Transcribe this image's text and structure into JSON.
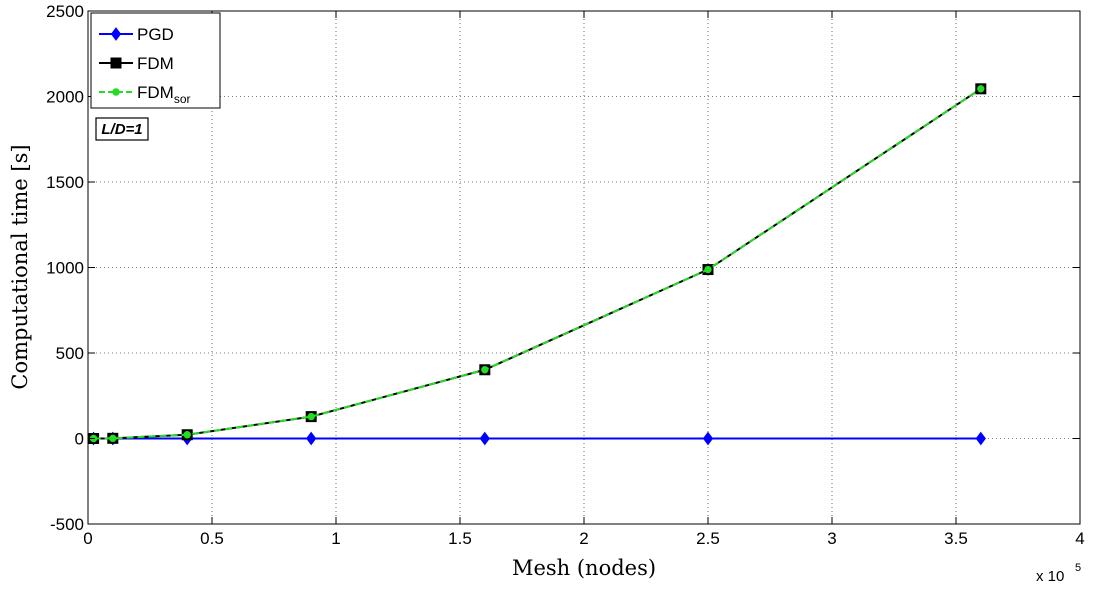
{
  "chart_data": {
    "type": "line",
    "xlabel": "Mesh (nodes)",
    "ylabel": "Computational time [s]",
    "x_multiplier": {
      "base": "x 10",
      "exponent": "5"
    },
    "xlim": [
      0,
      4
    ],
    "ylim": [
      -500,
      2500
    ],
    "x_ticks": [
      "0",
      "0.5",
      "1",
      "1.5",
      "2",
      "2.5",
      "3",
      "3.5",
      "4"
    ],
    "x_tick_values": [
      0,
      0.5,
      1,
      1.5,
      2,
      2.5,
      3,
      3.5,
      4
    ],
    "y_ticks": [
      "-500",
      "0",
      "500",
      "1000",
      "1500",
      "2000",
      "2500"
    ],
    "y_tick_values": [
      -500,
      0,
      500,
      1000,
      1500,
      2000,
      2500
    ],
    "grid": true,
    "legend_position": "top-left",
    "annotation": "L/D=1",
    "x": [
      0.0225,
      0.1,
      0.4,
      0.9,
      1.6,
      2.5,
      3.6
    ],
    "series": [
      {
        "name": "PGD",
        "name_sub": "",
        "color": "#0000ff",
        "marker": "diamond",
        "dash": "solid",
        "values": [
          0,
          0,
          0,
          0,
          0,
          0,
          0
        ]
      },
      {
        "name": "FDM",
        "name_sub": "",
        "color": "#000000",
        "marker": "square",
        "dash": "solid",
        "values": [
          0,
          1,
          22,
          128,
          402,
          988,
          2045
        ]
      },
      {
        "name": "FDM",
        "name_sub": "sor",
        "color": "#22dd22",
        "marker": "circle",
        "dash": "dashed",
        "values": [
          0,
          1,
          22,
          128,
          402,
          988,
          2045
        ]
      }
    ]
  }
}
